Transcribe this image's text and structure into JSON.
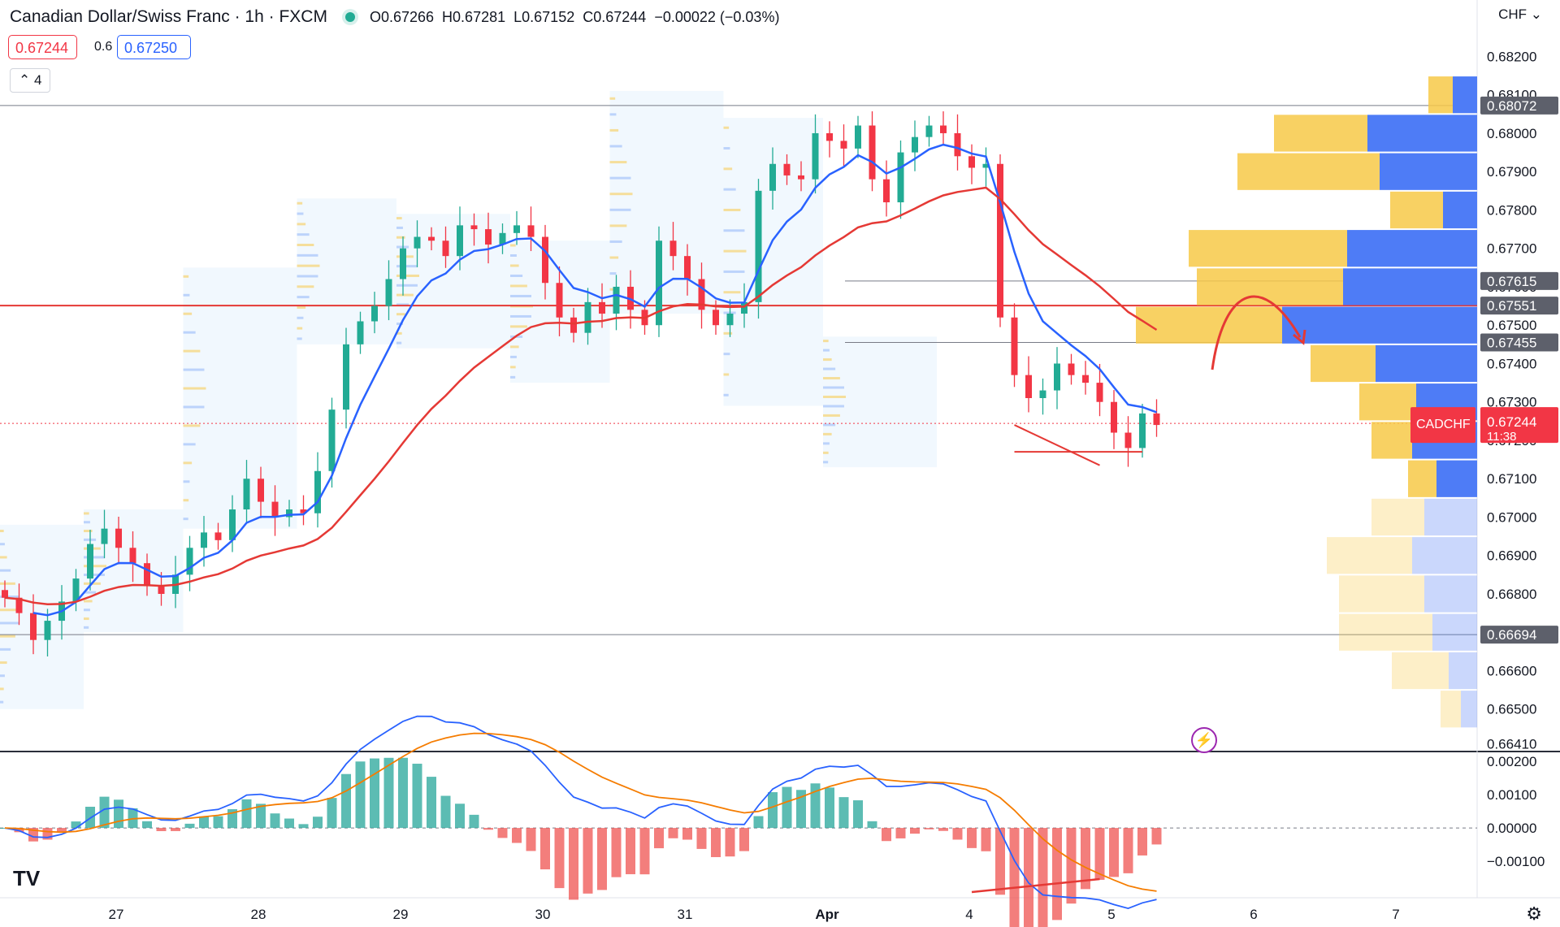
{
  "header": {
    "title": "Canadian Dollar/Swiss Franc · 1h · FXCM",
    "open": "O0.67266",
    "high": "H0.67281",
    "low": "L0.67152",
    "close": "C0.67244",
    "change": "−0.00022 (−0.03%)"
  },
  "trade": {
    "sell": "0.67244",
    "spread": "0.6",
    "buy": "0.67250"
  },
  "indicator_toggle": "4",
  "currency": "CHF",
  "symbol_label": "CADCHF",
  "countdown": "11:38",
  "logo": "TV",
  "colors": {
    "up": "#22ab94",
    "down": "#f23645",
    "ema_fast": "#2962ff",
    "ema_slow": "#e53935",
    "vp_up": "#f7c948",
    "vp_down": "#4e7cf6"
  },
  "chart_data": [
    {
      "type": "candlestick",
      "title": "Canadian Dollar/Swiss Franc · 1h · FXCM",
      "x_tick_labels": [
        "27",
        "28",
        "29",
        "30",
        "31",
        "Apr",
        "4",
        "5",
        "6",
        "7"
      ],
      "y_tick_labels": [
        "0.68200",
        "0.68100",
        "0.68000",
        "0.67900",
        "0.67800",
        "0.67700",
        "0.67600",
        "0.67500",
        "0.67400",
        "0.67300",
        "0.67200",
        "0.67100",
        "0.67000",
        "0.66900",
        "0.66800",
        "0.66700",
        "0.66600",
        "0.66500",
        "0.66410"
      ],
      "ylim": [
        0.664,
        0.6822
      ],
      "last_price": 0.67244,
      "level_labels": [
        "0.68072",
        "0.67615",
        "0.67551",
        "0.67455",
        "0.66694"
      ],
      "key_levels": {
        "resistance": 0.67551,
        "top": 0.68072,
        "bottom": 0.66694
      },
      "closes": [
        0.6679,
        0.6675,
        0.6668,
        0.6673,
        0.6678,
        0.6684,
        0.6693,
        0.6697,
        0.6692,
        0.6688,
        0.6682,
        0.668,
        0.6685,
        0.6692,
        0.6696,
        0.6694,
        0.6702,
        0.671,
        0.6704,
        0.67,
        0.6702,
        0.6701,
        0.6712,
        0.6728,
        0.6745,
        0.6751,
        0.6755,
        0.6762,
        0.677,
        0.6773,
        0.6772,
        0.6768,
        0.6776,
        0.6775,
        0.6771,
        0.6774,
        0.6776,
        0.6773,
        0.6761,
        0.6752,
        0.6748,
        0.6756,
        0.6753,
        0.676,
        0.6754,
        0.675,
        0.6772,
        0.6768,
        0.6762,
        0.6754,
        0.675,
        0.6753,
        0.6756,
        0.6785,
        0.6792,
        0.6789,
        0.6788,
        0.68,
        0.6798,
        0.6796,
        0.6802,
        0.6788,
        0.6782,
        0.6795,
        0.6799,
        0.6802,
        0.68,
        0.6794,
        0.6791,
        0.6792,
        0.6752,
        0.6737,
        0.6731,
        0.6733,
        0.674,
        0.6737,
        0.6735,
        0.673,
        0.6722,
        0.6718,
        0.6727,
        0.6724
      ],
      "series": [
        {
          "name": "EMA fast",
          "color": "#2962ff"
        },
        {
          "name": "EMA slow",
          "color": "#e53935"
        }
      ],
      "volume_profile": {
        "prices": [
          0.681,
          0.68,
          0.679,
          0.678,
          0.677,
          0.676,
          0.675,
          0.674,
          0.673,
          0.672,
          0.671,
          0.67,
          0.669,
          0.668,
          0.667,
          0.666,
          0.665
        ],
        "up": [
          30,
          115,
          175,
          65,
          195,
          180,
          180,
          80,
          70,
          50,
          35,
          65,
          105,
          105,
          115,
          70,
          25
        ],
        "down": [
          30,
          135,
          120,
          42,
          160,
          165,
          240,
          125,
          75,
          80,
          50,
          65,
          80,
          65,
          55,
          35,
          20
        ],
        "faded_below": 0.6705
      }
    },
    {
      "type": "macd",
      "y_tick_labels": [
        "0.00200",
        "0.00100",
        "0.00000",
        "−0.00100"
      ],
      "ylim": [
        -0.0019,
        0.0021
      ],
      "series": [
        {
          "name": "MACD",
          "color": "#2962ff"
        },
        {
          "name": "Signal",
          "color": "#f57c00"
        }
      ]
    }
  ]
}
